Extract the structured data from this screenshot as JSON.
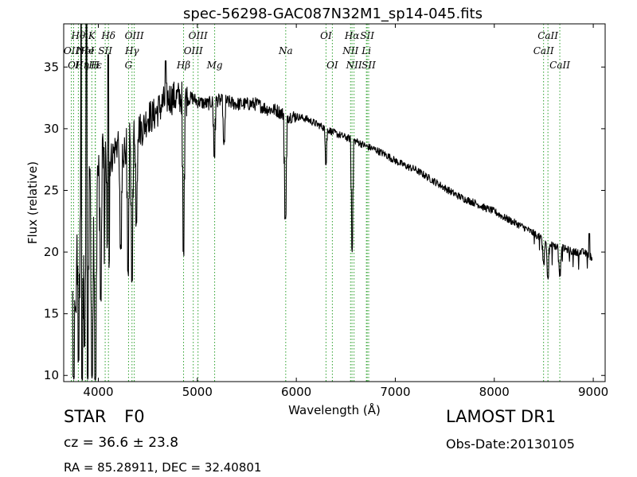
{
  "chart_data": {
    "type": "line",
    "title": "spec-56298-GAC087N32M1_sp14-045.fits",
    "xlabel": "Wavelength (Å)",
    "ylabel": "Flux (relative)",
    "xlim": [
      3650,
      9120
    ],
    "ylim": [
      9.5,
      38.5
    ],
    "xticks": [
      4000,
      5000,
      6000,
      7000,
      8000,
      9000
    ],
    "yticks": [
      10,
      15,
      20,
      25,
      30,
      35
    ],
    "grid": false,
    "line_color": "#000000",
    "marker_color": "#2ca02c",
    "continuum": [
      [
        3740,
        22
      ],
      [
        3800,
        24
      ],
      [
        3850,
        25
      ],
      [
        3900,
        26
      ],
      [
        3950,
        25
      ],
      [
        4000,
        27
      ],
      [
        4050,
        28
      ],
      [
        4100,
        27
      ],
      [
        4150,
        28
      ],
      [
        4200,
        29
      ],
      [
        4250,
        28
      ],
      [
        4300,
        29
      ],
      [
        4350,
        30
      ],
      [
        4400,
        30
      ],
      [
        4450,
        30
      ],
      [
        4500,
        31
      ],
      [
        4550,
        31
      ],
      [
        4600,
        31.5
      ],
      [
        4650,
        32
      ],
      [
        4700,
        32.5
      ],
      [
        4750,
        32.5
      ],
      [
        4800,
        32.5
      ],
      [
        4850,
        32.5
      ],
      [
        4900,
        32.4
      ],
      [
        4950,
        32.5
      ],
      [
        5000,
        32.2
      ],
      [
        5100,
        32
      ],
      [
        5200,
        32.3
      ],
      [
        5300,
        32.2
      ],
      [
        5400,
        32
      ],
      [
        5500,
        32
      ],
      [
        5600,
        32
      ],
      [
        5700,
        31.6
      ],
      [
        5800,
        31.5
      ],
      [
        5900,
        31
      ],
      [
        6000,
        31
      ],
      [
        6100,
        30.8
      ],
      [
        6200,
        30.4
      ],
      [
        6300,
        30
      ],
      [
        6400,
        29.6
      ],
      [
        6500,
        29.3
      ],
      [
        6600,
        29
      ],
      [
        6700,
        28.6
      ],
      [
        6800,
        28.3
      ],
      [
        6900,
        27.9
      ],
      [
        7000,
        27.4
      ],
      [
        7100,
        27
      ],
      [
        7200,
        26.7
      ],
      [
        7300,
        26.2
      ],
      [
        7400,
        25.7
      ],
      [
        7500,
        25.2
      ],
      [
        7600,
        24.7
      ],
      [
        7700,
        24.3
      ],
      [
        7800,
        24
      ],
      [
        7900,
        23.6
      ],
      [
        8000,
        23.3
      ],
      [
        8100,
        22.8
      ],
      [
        8200,
        22.4
      ],
      [
        8300,
        22
      ],
      [
        8400,
        21.5
      ],
      [
        8500,
        21
      ],
      [
        8600,
        20.5
      ],
      [
        8700,
        20.3
      ],
      [
        8800,
        20
      ],
      [
        8900,
        20
      ],
      [
        9000,
        19.5
      ]
    ],
    "absorption_features": [
      [
        3750,
        9.5
      ],
      [
        3770,
        15
      ],
      [
        3800,
        11
      ],
      [
        3835,
        9.5
      ],
      [
        3860,
        12
      ],
      [
        3890,
        9.5
      ],
      [
        3935,
        9.5
      ],
      [
        3970,
        9.5
      ],
      [
        4025,
        16
      ],
      [
        4101,
        11
      ],
      [
        4226,
        20
      ],
      [
        4300,
        18
      ],
      [
        4340,
        17.3
      ],
      [
        4383,
        22
      ],
      [
        4861,
        19.7
      ],
      [
        5172,
        27.5
      ],
      [
        5270,
        28.5
      ],
      [
        5890,
        22.6
      ],
      [
        6300,
        27
      ],
      [
        6563,
        20
      ],
      [
        8498,
        18.8
      ],
      [
        8542,
        17.7
      ],
      [
        8662,
        18
      ]
    ],
    "emission_spikes": [
      [
        3825,
        38.5
      ],
      [
        3880,
        38.5
      ],
      [
        4100,
        36
      ],
      [
        4680,
        35.5
      ],
      [
        8960,
        21.5
      ]
    ],
    "lines": [
      {
        "label": "OII",
        "x": 3727,
        "row": 1
      },
      {
        "label": "Hθ",
        "x": 3798,
        "row": 0
      },
      {
        "label": "Hη",
        "x": 3835,
        "row": 2
      },
      {
        "label": "OI",
        "x": 3750,
        "row": 2
      },
      {
        "label": "He",
        "x": 3889,
        "row": 1
      },
      {
        "label": "NeI",
        "x": 3869,
        "row": 1
      },
      {
        "label": "SII",
        "x": 4069,
        "row": 1
      },
      {
        "label": "Hε",
        "x": 3970,
        "row": 2
      },
      {
        "label": "K",
        "x": 3934,
        "row": 0
      },
      {
        "label": "H",
        "x": 3968,
        "row": 2
      },
      {
        "label": "Hδ",
        "x": 4102,
        "row": 0
      },
      {
        "label": "G",
        "x": 4305,
        "row": 2
      },
      {
        "label": "Hγ",
        "x": 4340,
        "row": 1
      },
      {
        "label": "OIII",
        "x": 4363,
        "row": 0
      },
      {
        "label": "Hβ",
        "x": 4861,
        "row": 2
      },
      {
        "label": "OIII",
        "x": 4959,
        "row": 1
      },
      {
        "label": "OIII",
        "x": 5007,
        "row": 0
      },
      {
        "label": "Mg",
        "x": 5175,
        "row": 2
      },
      {
        "label": "Na",
        "x": 5893,
        "row": 1
      },
      {
        "label": "OI",
        "x": 6300,
        "row": 0
      },
      {
        "label": "OI",
        "x": 6364,
        "row": 2
      },
      {
        "label": "NII",
        "x": 6548,
        "row": 1
      },
      {
        "label": "Hα",
        "x": 6563,
        "row": 0
      },
      {
        "label": "NII",
        "x": 6583,
        "row": 2
      },
      {
        "label": "Li",
        "x": 6708,
        "row": 1
      },
      {
        "label": "SII",
        "x": 6716,
        "row": 0
      },
      {
        "label": "SII",
        "x": 6731,
        "row": 2
      },
      {
        "label": "CaII",
        "x": 8498,
        "row": 1
      },
      {
        "label": "CaII",
        "x": 8542,
        "row": 0
      },
      {
        "label": "CaII",
        "x": 8662,
        "row": 2
      }
    ]
  },
  "info": {
    "object_class": "STAR",
    "subclass": "F0",
    "survey": "LAMOST DR1",
    "redshift": "cz = 36.6 ± 23.8",
    "obs_date": "Obs-Date:20130105",
    "coords": "RA = 85.28911, DEC = 32.40801"
  }
}
